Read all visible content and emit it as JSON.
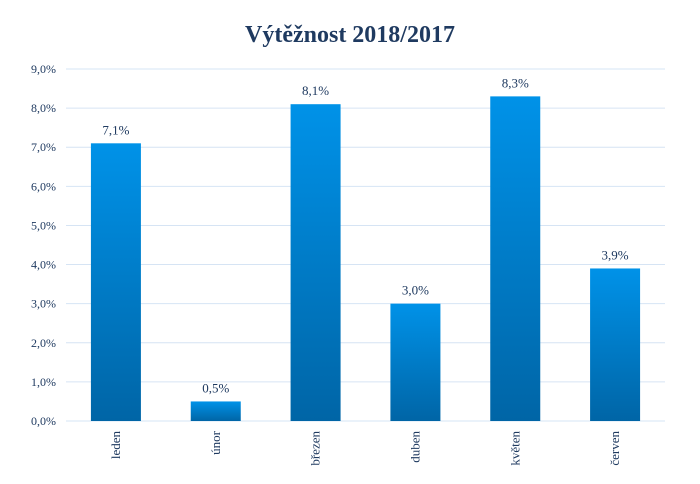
{
  "chart_data": {
    "type": "bar",
    "title": "Výtěžnost 2018/2017",
    "categories": [
      "leden",
      "únor",
      "březen",
      "duben",
      "květen",
      "červen"
    ],
    "values": [
      7.1,
      0.5,
      8.1,
      3.0,
      8.3,
      3.9
    ],
    "data_labels": [
      "7,1%",
      "0,5%",
      "8,1%",
      "3,0%",
      "8,3%",
      "3,9%"
    ],
    "ylim": [
      0,
      9
    ],
    "yticks": [
      "0,0%",
      "1,0%",
      "2,0%",
      "3,0%",
      "4,0%",
      "5,0%",
      "6,0%",
      "7,0%",
      "8,0%",
      "9,0%"
    ],
    "xlabel": "",
    "ylabel": "",
    "grid": true,
    "legend": "none",
    "colors": {
      "bar_top": "#0092E8",
      "bar_bottom": "#0065A6",
      "grid": "#D6E4F4",
      "text": "#1F3A60"
    }
  }
}
